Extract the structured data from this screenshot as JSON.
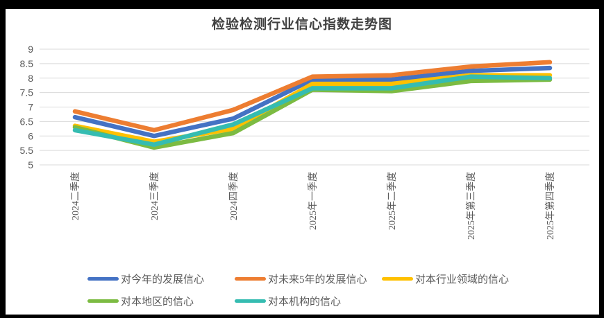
{
  "title": "检验检测行业信心指数走势图",
  "colors": {
    "gridline": "#D9D9D9",
    "axis_text": "#595959",
    "title_text": "#404040"
  },
  "chart_data": {
    "type": "line",
    "title": "检验检测行业信心指数走势图",
    "xlabel": "",
    "ylabel": "",
    "ylim": [
      5,
      9
    ],
    "ytick_step": 0.5,
    "yticks": [
      "9",
      "8.5",
      "8",
      "7.5",
      "7",
      "6.5",
      "6",
      "5.5",
      "5"
    ],
    "grid": "horizontal",
    "legend_position": "bottom",
    "categories": [
      "2024二季度",
      "2024三季度",
      "2024四季度",
      "2025年一季度",
      "2025年二季度",
      "2025年第三季度",
      "2025年第四季度"
    ],
    "series": [
      {
        "name": "对今年的发展信心",
        "color": "#4472C4",
        "values": [
          6.65,
          6.0,
          6.6,
          7.95,
          7.95,
          8.25,
          8.35
        ]
      },
      {
        "name": "对未来5年的发展信心",
        "color": "#ED7D31",
        "values": [
          6.85,
          6.2,
          6.9,
          8.05,
          8.1,
          8.4,
          8.55
        ]
      },
      {
        "name": "对本行业领域的信心",
        "color": "#FFC000",
        "values": [
          6.35,
          5.8,
          6.25,
          7.8,
          7.8,
          8.1,
          8.1
        ]
      },
      {
        "name": "对本地区的信心",
        "color": "#7CBB42",
        "values": [
          6.3,
          5.6,
          6.1,
          7.6,
          7.55,
          7.9,
          7.95
        ]
      },
      {
        "name": "对本机构的信心",
        "color": "#35BCB1",
        "values": [
          6.2,
          5.7,
          6.4,
          7.65,
          7.65,
          8.05,
          8.0
        ]
      }
    ]
  }
}
